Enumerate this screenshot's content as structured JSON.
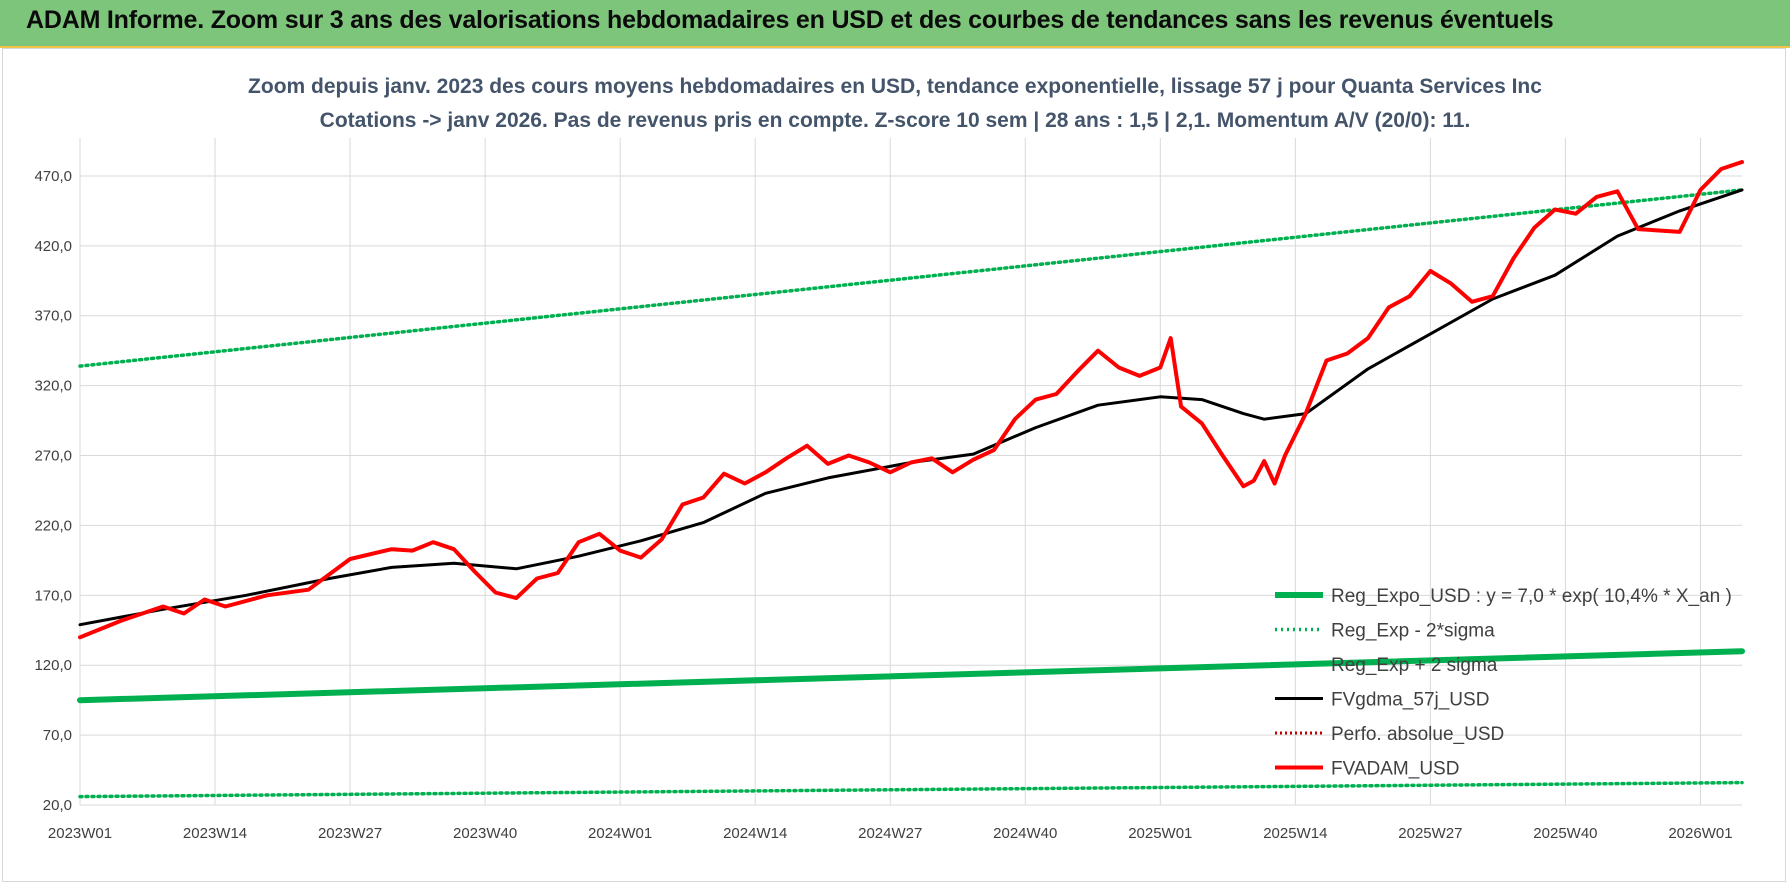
{
  "banner": {
    "title": "ADAM Informe. Zoom sur 3 ans des valorisations hebdomadaires en USD et des courbes de tendances sans les revenus éventuels"
  },
  "colors": {
    "banner": "#7dc57b",
    "regression": "#00b050",
    "fvgdma": "#000000",
    "fvadam": "#ff0000",
    "perfo": "#c00000",
    "grid": "#d9d9d9"
  },
  "chart_data": {
    "type": "line",
    "title": "Zoom depuis janv. 2023 des cours moyens hebdomadaires en USD, tendance exponentielle, lissage 57 j pour Quanta Services Inc",
    "subtitle": "Cotations -> janv 2026. Pas de revenus pris en compte. Z-score 10 sem  | 28 ans : 1,5 | 2,1. Momentum A/V (20/0): 11.",
    "ylim": [
      20,
      490
    ],
    "y_ticks": [
      "470,0",
      "420,0",
      "370,0",
      "320,0",
      "270,0",
      "220,0",
      "170,0",
      "120,0",
      "70,0",
      "20,0"
    ],
    "y_tick_values": [
      470,
      420,
      370,
      320,
      270,
      220,
      170,
      120,
      70,
      20
    ],
    "x_ticks": [
      "2023W01",
      "2023W14",
      "2023W27",
      "2023W40",
      "2024W01",
      "2024W14",
      "2024W27",
      "2024W40",
      "2025W01",
      "2025W14",
      "2025W27",
      "2025W40",
      "2026W01"
    ],
    "x_tick_weeks": [
      0,
      13,
      26,
      39,
      52,
      65,
      78,
      91,
      104,
      117,
      130,
      143,
      156
    ],
    "grid": true,
    "legend_position": "bottom-right",
    "series": [
      {
        "name": "Reg_Expo_USD : y = 7,0 * exp( 10,4% *  X_an )",
        "style": "solid-thick",
        "x": [
          0,
          160
        ],
        "y": [
          95,
          130
        ]
      },
      {
        "name": "Reg_Exp - 2*sigma",
        "style": "dotted",
        "x": [
          0,
          160
        ],
        "y": [
          26,
          36
        ]
      },
      {
        "name": "Reg_Exp + 2 sigma",
        "style": "dotted",
        "x": [
          0,
          160
        ],
        "y": [
          334,
          460
        ]
      },
      {
        "name": "FVgdma_57j_USD",
        "style": "solid",
        "x": [
          0,
          8,
          16,
          24,
          30,
          36,
          42,
          48,
          54,
          60,
          66,
          72,
          80,
          86,
          92,
          98,
          104,
          108,
          112,
          114,
          118,
          124,
          130,
          136,
          142,
          148,
          154,
          160
        ],
        "y": [
          149,
          160,
          170,
          182,
          190,
          193,
          189,
          198,
          209,
          222,
          243,
          254,
          265,
          271,
          290,
          306,
          312,
          310,
          300,
          296,
          300,
          332,
          357,
          382,
          399,
          427,
          445,
          460
        ]
      },
      {
        "name": "Perfo. absolue_USD",
        "style": "dotted-red",
        "x": [],
        "y": []
      },
      {
        "name": "FVADAM_USD",
        "style": "solid-thick-red",
        "x": [
          0,
          4,
          8,
          10,
          12,
          14,
          18,
          22,
          26,
          30,
          32,
          34,
          36,
          37,
          38,
          40,
          42,
          44,
          46,
          48,
          50,
          52,
          54,
          56,
          58,
          60,
          62,
          64,
          66,
          68,
          70,
          72,
          74,
          76,
          78,
          80,
          82,
          84,
          86,
          88,
          90,
          92,
          94,
          96,
          98,
          100,
          102,
          104,
          105,
          106,
          108,
          110,
          112,
          113,
          114,
          115,
          116,
          118,
          120,
          122,
          124,
          126,
          128,
          130,
          132,
          134,
          136,
          138,
          140,
          142,
          144,
          146,
          148,
          150,
          152,
          154,
          156,
          158,
          160
        ],
        "y": [
          140,
          152,
          162,
          157,
          167,
          162,
          170,
          174,
          196,
          203,
          202,
          208,
          203,
          195,
          187,
          172,
          168,
          182,
          186,
          208,
          214,
          202,
          197,
          210,
          235,
          240,
          257,
          250,
          258,
          268,
          277,
          264,
          270,
          265,
          258,
          265,
          268,
          258,
          267,
          274,
          296,
          310,
          314,
          330,
          345,
          333,
          327,
          333,
          354,
          305,
          293,
          270,
          248,
          252,
          266,
          250,
          270,
          300,
          338,
          343,
          354,
          376,
          384,
          402,
          393,
          380,
          384,
          411,
          433,
          446,
          443,
          455,
          459,
          432,
          431,
          430,
          460,
          475,
          480
        ]
      }
    ]
  }
}
